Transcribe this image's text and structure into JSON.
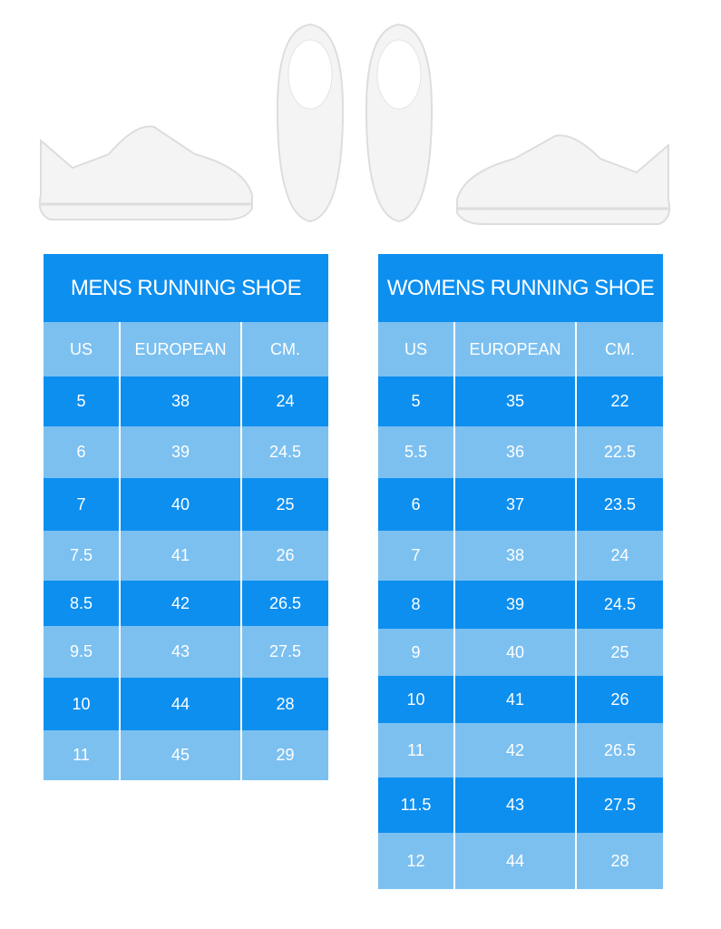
{
  "mens": {
    "title": "MENS RUNNING SHOE",
    "headers": [
      "US",
      "EUROPEAN",
      "CM."
    ],
    "rows": [
      [
        "5",
        "38",
        "24"
      ],
      [
        "6",
        "39",
        "24.5"
      ],
      [
        "7",
        "40",
        "25"
      ],
      [
        "7.5",
        "41",
        "26"
      ],
      [
        "8.5",
        "42",
        "26.5"
      ],
      [
        "9.5",
        "43",
        "27.5"
      ],
      [
        "10",
        "44",
        "28"
      ],
      [
        "11",
        "45",
        "29"
      ]
    ]
  },
  "womens": {
    "title": "WOMENS RUNNING SHOE",
    "headers": [
      "US",
      "EUROPEAN",
      "CM."
    ],
    "rows": [
      [
        "5",
        "35",
        "22"
      ],
      [
        "5.5",
        "36",
        "22.5"
      ],
      [
        "6",
        "37",
        "23.5"
      ],
      [
        "7",
        "38",
        "24"
      ],
      [
        "8",
        "39",
        "24.5"
      ],
      [
        "9",
        "40",
        "25"
      ],
      [
        "10",
        "41",
        "26"
      ],
      [
        "11",
        "42",
        "26.5"
      ],
      [
        "11.5",
        "43",
        "27.5"
      ],
      [
        "12",
        "44",
        "28"
      ]
    ]
  },
  "colors": {
    "dark": "#0d8ff0",
    "light": "#7cc0f0"
  }
}
